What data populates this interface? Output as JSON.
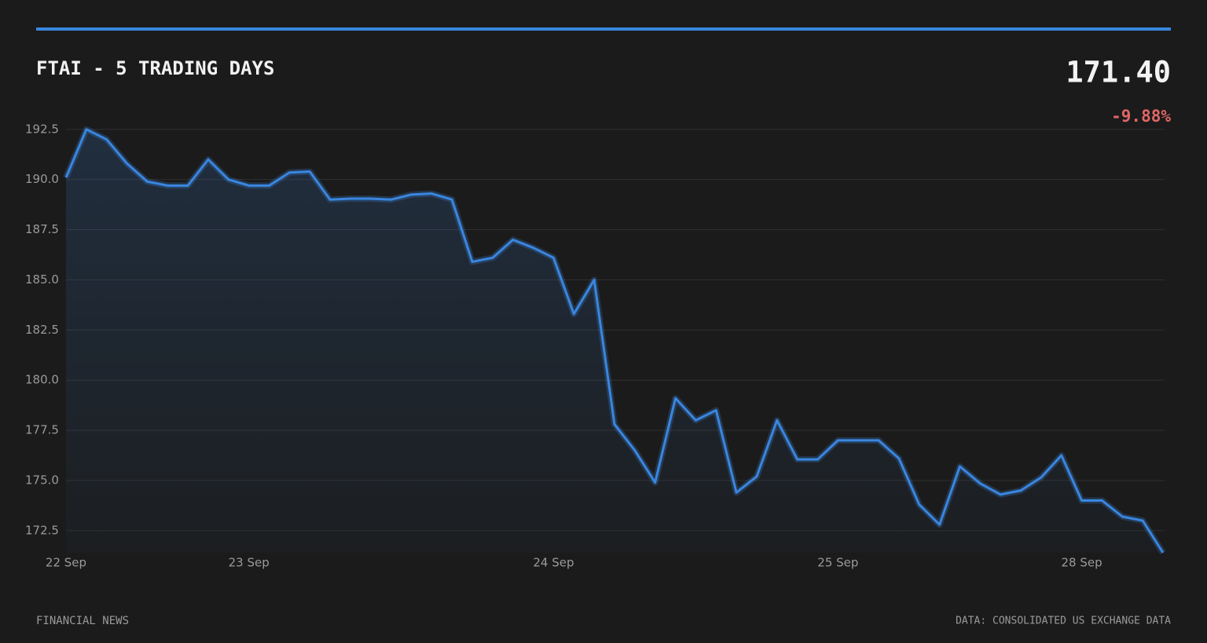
{
  "header": {
    "title": "FTAI - 5 TRADING DAYS",
    "price": "171.40",
    "change": "-9.88%"
  },
  "footer": {
    "left": "FINANCIAL NEWS",
    "right": "DATA: CONSOLIDATED US EXCHANGE DATA"
  },
  "chart_data": {
    "type": "line",
    "categories": [
      "22 Sep",
      null,
      null,
      null,
      null,
      null,
      null,
      null,
      null,
      "23 Sep",
      null,
      null,
      null,
      null,
      null,
      null,
      null,
      null,
      null,
      null,
      null,
      null,
      null,
      null,
      "24 Sep",
      null,
      null,
      null,
      null,
      null,
      null,
      null,
      null,
      null,
      null,
      null,
      null,
      null,
      "25 Sep",
      null,
      null,
      null,
      null,
      null,
      null,
      null,
      null,
      null,
      null,
      null,
      "28 Sep",
      null,
      null,
      null,
      null
    ],
    "series": [
      {
        "color": "#3a86e0",
        "values": [
          190.1,
          192.5,
          192.0,
          190.8,
          189.9,
          189.7,
          189.7,
          191.0,
          190.0,
          189.7,
          189.7,
          190.35,
          190.4,
          189.0,
          189.05,
          189.05,
          189.0,
          189.25,
          189.3,
          189.0,
          185.9,
          186.1,
          187.0,
          186.6,
          186.1,
          183.3,
          185.0,
          177.8,
          176.5,
          174.9,
          179.1,
          178.0,
          178.5,
          174.4,
          175.2,
          178.0,
          176.05,
          176.05,
          177.0,
          177.0,
          177.0,
          176.1,
          173.8,
          172.8,
          175.7,
          174.85,
          174.3,
          174.5,
          175.15,
          176.25,
          174.0,
          174.0,
          173.2,
          173.0,
          171.4
        ]
      }
    ],
    "ylim": [
      171.4,
      193.0
    ],
    "yticks": [
      172.5,
      {
        "value": 175,
        "label": "175.0"
      },
      177.5,
      {
        "value": 180,
        "label": "180.0"
      },
      182.5,
      {
        "value": 185,
        "label": "185.0"
      },
      187.5,
      {
        "value": 190,
        "label": "190.0"
      },
      192.5
    ],
    "grid": true
  }
}
